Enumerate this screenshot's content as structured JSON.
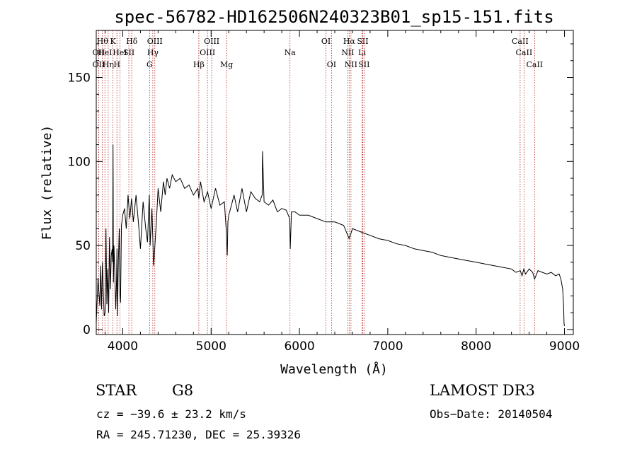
{
  "chart_data": {
    "type": "line",
    "title": "spec-56782-HD162506N240323B01_sp15-151.fits",
    "xlabel": "Wavelength (Å)",
    "ylabel": "Flux (relative)",
    "xlim": [
      3700,
      9100
    ],
    "ylim": [
      -3,
      178
    ],
    "xticks": [
      4000,
      5000,
      6000,
      7000,
      8000,
      9000
    ],
    "yticks": [
      0,
      50,
      100,
      150
    ],
    "series": [
      {
        "name": "spectrum",
        "x": [
          3700,
          3720,
          3740,
          3750,
          3760,
          3770,
          3780,
          3790,
          3800,
          3810,
          3820,
          3830,
          3840,
          3850,
          3860,
          3870,
          3880,
          3885,
          3890,
          3895,
          3900,
          3910,
          3920,
          3930,
          3935,
          3940,
          3950,
          3960,
          3968,
          3975,
          3985,
          4000,
          4020,
          4040,
          4060,
          4080,
          4100,
          4120,
          4150,
          4180,
          4200,
          4230,
          4260,
          4280,
          4300,
          4310,
          4330,
          4350,
          4380,
          4400,
          4430,
          4460,
          4480,
          4500,
          4530,
          4560,
          4600,
          4650,
          4700,
          4750,
          4800,
          4850,
          4861,
          4880,
          4920,
          4960,
          5000,
          5050,
          5100,
          5150,
          5170,
          5183,
          5190,
          5200,
          5230,
          5260,
          5300,
          5350,
          5400,
          5450,
          5500,
          5550,
          5578,
          5582,
          5600,
          5650,
          5700,
          5750,
          5800,
          5850,
          5890,
          5896,
          5910,
          5950,
          6000,
          6100,
          6200,
          6300,
          6400,
          6500,
          6563,
          6600,
          6700,
          6800,
          6900,
          7000,
          7100,
          7200,
          7300,
          7400,
          7500,
          7600,
          7700,
          7800,
          7900,
          8000,
          8100,
          8200,
          8300,
          8400,
          8450,
          8500,
          8520,
          8540,
          8560,
          8600,
          8640,
          8662,
          8700,
          8750,
          8800,
          8850,
          8900,
          8940,
          8960,
          8980,
          8990,
          8995,
          9000
        ],
        "y": [
          4,
          30,
          14,
          38,
          12,
          40,
          22,
          8,
          10,
          60,
          15,
          36,
          10,
          55,
          24,
          44,
          48,
          40,
          110,
          28,
          50,
          34,
          12,
          30,
          48,
          8,
          40,
          60,
          20,
          16,
          62,
          68,
          72,
          60,
          80,
          66,
          78,
          64,
          80,
          62,
          48,
          76,
          60,
          52,
          80,
          50,
          72,
          38,
          64,
          84,
          70,
          88,
          80,
          90,
          84,
          92,
          88,
          90,
          84,
          86,
          80,
          84,
          78,
          88,
          76,
          82,
          72,
          84,
          74,
          76,
          60,
          44,
          64,
          68,
          74,
          80,
          70,
          84,
          70,
          82,
          78,
          76,
          80,
          106,
          76,
          74,
          77,
          70,
          72,
          71,
          66,
          48,
          70,
          70,
          68,
          68,
          66,
          64,
          64,
          62,
          54,
          60,
          58,
          56,
          54,
          53,
          51,
          50,
          48,
          47,
          46,
          44,
          43,
          42,
          41,
          40,
          39,
          38,
          37,
          36,
          34,
          35,
          32,
          36,
          33,
          36,
          34,
          30,
          35,
          34,
          33,
          34,
          32,
          33,
          30,
          24,
          14,
          4,
          2
        ]
      }
    ],
    "lines": [
      {
        "wl": 3727,
        "label": "OII",
        "row": 2
      },
      {
        "wl": 3727,
        "label": "OII",
        "row": 3
      },
      {
        "wl": 3770,
        "label": "Hθ",
        "row": 1
      },
      {
        "wl": 3798,
        "label": "HeI",
        "row": 2
      },
      {
        "wl": 3835,
        "label": "Hη",
        "row": 3
      },
      {
        "wl": 3889,
        "label": "K",
        "row": 1
      },
      {
        "wl": 3934,
        "label": "H",
        "row": 3
      },
      {
        "wl": 3968,
        "label": "HeI",
        "row": 2
      },
      {
        "wl": 4069,
        "label": "SII",
        "row": 2
      },
      {
        "wl": 4102,
        "label": "Hδ",
        "row": 1
      },
      {
        "wl": 4304,
        "label": "G",
        "row": 3
      },
      {
        "wl": 4340,
        "label": "Hγ",
        "row": 2
      },
      {
        "wl": 4363,
        "label": "OIII",
        "row": 1
      },
      {
        "wl": 4861,
        "label": "Hβ",
        "row": 3
      },
      {
        "wl": 4959,
        "label": "OIII",
        "row": 2
      },
      {
        "wl": 5007,
        "label": "OIII",
        "row": 1
      },
      {
        "wl": 5175,
        "label": "Mg",
        "row": 3
      },
      {
        "wl": 5893,
        "label": "Na",
        "row": 2
      },
      {
        "wl": 6300,
        "label": "OI",
        "row": 1
      },
      {
        "wl": 6363,
        "label": "OI",
        "row": 3
      },
      {
        "wl": 6548,
        "label": "NII",
        "row": 2
      },
      {
        "wl": 6563,
        "label": "Hα",
        "row": 1
      },
      {
        "wl": 6583,
        "label": "NII",
        "row": 3
      },
      {
        "wl": 6708,
        "label": "Li",
        "row": 2
      },
      {
        "wl": 6716,
        "label": "SII",
        "row": 1
      },
      {
        "wl": 6731,
        "label": "SII",
        "row": 3
      },
      {
        "wl": 8498,
        "label": "CaII",
        "row": 1
      },
      {
        "wl": 8542,
        "label": "CaII",
        "row": 2
      },
      {
        "wl": 8662,
        "label": "CaII",
        "row": 3
      }
    ]
  },
  "info": {
    "object_class": "STAR",
    "subclass": "G8",
    "survey": "LAMOST DR3",
    "redshift": "cz = −39.6 ± 23.2 km/s",
    "obs_date": "Obs−Date: 20140504",
    "coords": "RA = 245.71230, DEC =  25.39326"
  },
  "colors": {
    "spectrum": "#000000",
    "line_marker": "#b22222",
    "axis": "#000000",
    "background": "#ffffff"
  }
}
